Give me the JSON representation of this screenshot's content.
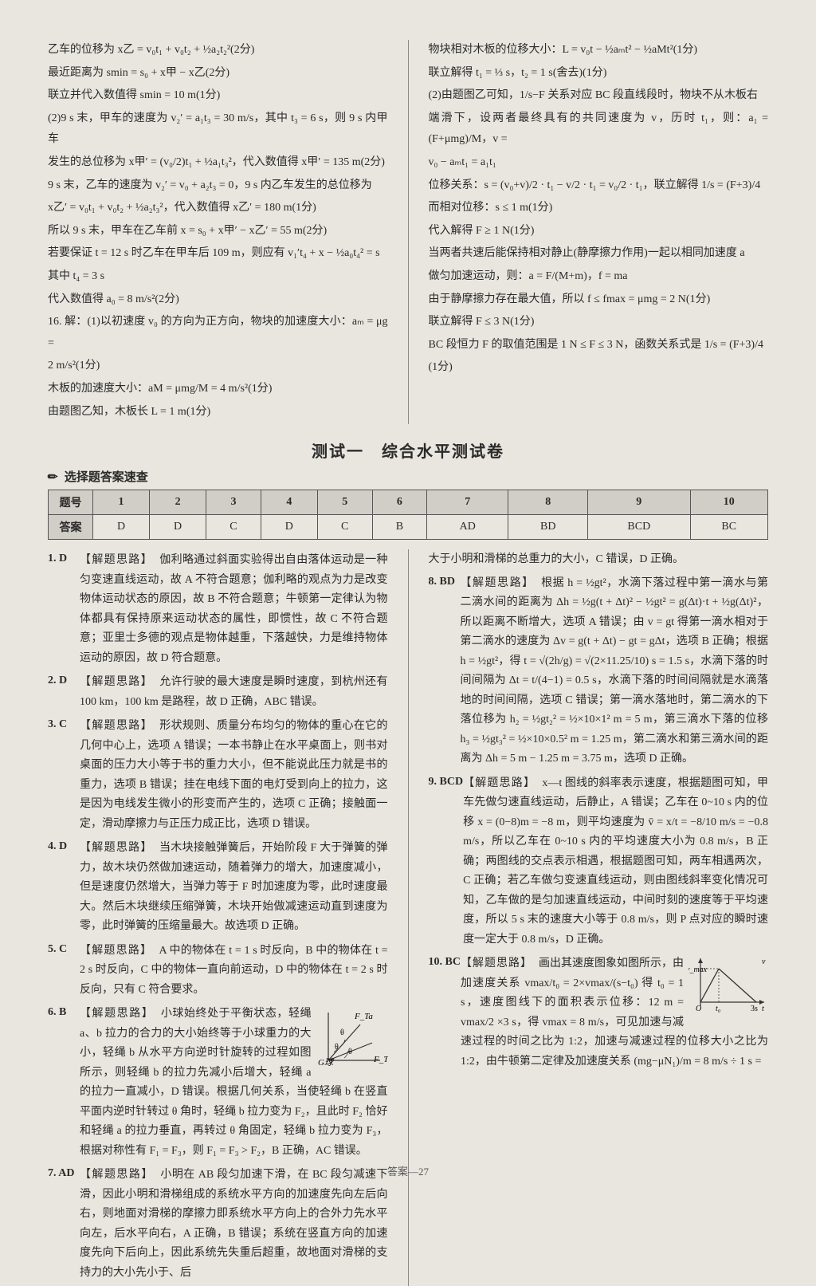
{
  "top": {
    "left_lines": [
      "乙车的位移为 x乙 = v₀t₁ + v₀t₂ + ½a₂t₂²(2分)",
      "最近距离为 smin = s₀ + x甲 − x乙(2分)",
      "联立并代入数值得 smin = 10 m(1分)",
      "(2)9 s 末，甲车的速度为 v₂′ = a₁t₃ = 30 m/s，其中 t₃ = 6 s，则 9 s 内甲车",
      "发生的总位移为 x甲′ = (v₀/2)t₁ + ½a₁t₃²，代入数值得 x甲′ = 135 m(2分)",
      "9 s 末，乙车的速度为 v₂′ = v₀ + a₂t₃ = 0，9 s 内乙车发生的总位移为",
      "x乙′ = v₀t₁ + v₀t₂ + ½a₂t₃²，代入数值得 x乙′ = 180 m(1分)",
      "所以 9 s 末，甲车在乙车前 x = s₀ + x甲′ − x乙′ = 55 m(2分)",
      "若要保证 t = 12 s 时乙车在甲车后 109 m，则应有 v₁′t₄ + x − ½a₀t₄² = s",
      "其中 t₄ = 3 s",
      "代入数值得 a₀ = 8 m/s²(2分)",
      "16. 解：(1)以初速度 v₀ 的方向为正方向，物块的加速度大小：aₘ = μg = ",
      "2 m/s²(1分)",
      "木板的加速度大小：aM = μmg/M = 4 m/s²(1分)",
      "由题图乙知，木板长 L = 1 m(1分)"
    ],
    "right_lines": [
      "物块相对木板的位移大小：L = v₀t − ½aₘt² − ½aMt²(1分)",
      "联立解得 t₁ = ⅓ s，t₂ = 1 s(舍去)(1分)",
      "(2)由题图乙可知，1/s−F 关系对应 BC 段直线段时，物块不从木板右",
      "端滑下，设两者最终具有的共同速度为 v，历时 t₁，则：a₁ = (F+μmg)/M，v =",
      "v₀ − aₘt₁ = a₁t₁",
      "位移关系：s = (v₀+v)/2 · t₁ − v/2 · t₁ = v₀/2 · t₁，联立解得 1/s = (F+3)/4",
      "而相对位移：s ≤ 1 m(1分)",
      "代入解得 F ≥ 1 N(1分)",
      "当两者共速后能保持相对静止(静摩擦力作用)一起以相同加速度 a",
      "做匀加速运动，则：a = F/(M+m)，f = ma",
      "由于静摩擦力存在最大值，所以 f ≤ fmax = μmg = 2 N(1分)",
      "联立解得 F ≤ 3 N(1分)",
      "BC 段恒力 F 的取值范围是 1 N ≤ F ≤ 3 N，函数关系式是 1/s = (F+3)/4",
      "(1分)"
    ]
  },
  "test_title": "测试一　综合水平测试卷",
  "quick_check_label": "选择题答案速查",
  "answer_table": {
    "header_label": "题号",
    "row_label": "答案",
    "cols": [
      "1",
      "2",
      "3",
      "4",
      "5",
      "6",
      "7",
      "8",
      "9",
      "10"
    ],
    "answers": [
      "D",
      "D",
      "C",
      "D",
      "C",
      "B",
      "AD",
      "BD",
      "BCD",
      "BC"
    ]
  },
  "solutions_left": [
    {
      "num": "1. D",
      "tag": "【解题思路】",
      "text": "伽利略通过斜面实验得出自由落体运动是一种匀变速直线运动，故 A 不符合题意；伽利略的观点为力是改变物体运动状态的原因，故 B 不符合题意；牛顿第一定律认为物体都具有保持原来运动状态的属性，即惯性，故 C 不符合题意；亚里士多德的观点是物体越重，下落越快，力是维持物体运动的原因，故 D 符合题意。"
    },
    {
      "num": "2. D",
      "tag": "【解题思路】",
      "text": "允许行驶的最大速度是瞬时速度，到杭州还有 100 km，100 km 是路程，故 D 正确，ABC 错误。"
    },
    {
      "num": "3. C",
      "tag": "【解题思路】",
      "text": "形状规则、质量分布均匀的物体的重心在它的几何中心上，选项 A 错误；一本书静止在水平桌面上，则书对桌面的压力大小等于书的重力大小，但不能说此压力就是书的重力，选项 B 错误；挂在电线下面的电灯受到向上的拉力，这是因为电线发生微小的形变而产生的，选项 C 正确；接触面一定，滑动摩擦力与正压力成正比，选项 D 错误。"
    },
    {
      "num": "4. D",
      "tag": "【解题思路】",
      "text": "当木块接触弹簧后，开始阶段 F 大于弹簧的弹力，故木块仍然做加速运动，随着弹力的增大，加速度减小，但是速度仍然增大，当弹力等于 F 时加速度为零，此时速度最大。然后木块继续压缩弹簧，木块开始做减速运动直到速度为零，此时弹簧的压缩量最大。故选项 D 正确。"
    },
    {
      "num": "5. C",
      "tag": "【解题思路】",
      "text": "A 中的物体在 t = 1 s 时反向，B 中的物体在 t = 2 s 时反向，C 中的物体一直向前运动，D 中的物体在 t = 2 s 时反向，只有 C 符合要求。"
    },
    {
      "num": "6. B",
      "tag": "【解题思路】",
      "text": "小球始终处于平衡状态，轻绳 a、b 拉力的合力的大小始终等于小球重力的大小，轻绳 b 从水平方向逆时针旋转的过程如图所示，则轻绳 b 的拉力先减小后增大，轻绳 a 的拉力一直减小，D 错误。根据几何关系，当使轻绳 b 在竖直平面内逆时针转过 θ 角时，轻绳 b 拉力变为 F₂，且此时 F₂ 恰好和轻绳 a 的拉力垂直，再转过 θ 角固定，轻绳 b 拉力变为 F₃，根据对称性有 F₁ = F₃，则 F₁ = F₃ > F₂，B 正确，AC 错误。",
      "has_diagram": true
    },
    {
      "num": "7. AD",
      "tag": "【解题思路】",
      "text": "小明在 AB 段匀加速下滑，在 BC 段匀减速下滑，因此小明和滑梯组成的系统水平方向的加速度先向左后向右，则地面对滑梯的摩擦力即系统水平方向上的合外力先水平向左，后水平向右，A 正确，B 错误；系统在竖直方向的加速度先向下后向上，因此系统先失重后超重，故地面对滑梯的支持力的大小先小于、后"
    }
  ],
  "solutions_right": [
    {
      "pre": "大于小明和滑梯的总重力的大小，C 错误，D 正确。"
    },
    {
      "num": "8. BD",
      "tag": "【解题思路】",
      "text": "根据 h = ½gt²，水滴下落过程中第一滴水与第二滴水间的距离为 Δh = ½g(t + Δt)² − ½gt² = g(Δt)·t + ½g(Δt)²，所以距离不断增大，选项 A 错误；由 v = gt 得第一滴水相对于第二滴水的速度为 Δv = g(t + Δt) − gt = gΔt，选项 B 正确；根据 h = ½gt²，得 t = √(2h/g) = √(2×11.25/10) s = 1.5 s，水滴下落的时间间隔为 Δt = t/(4−1) = 0.5 s，水滴下落的时间间隔就是水滴落地的时间间隔，选项 C 错误；第一滴水落地时，第二滴水的下落位移为 h₂ = ½gt₂² = ½×10×1² m = 5 m，第三滴水下落的位移 h₃ = ½gt₃² = ½×10×0.5² m = 1.25 m，第二滴水和第三滴水间的距离为 Δh = 5 m − 1.25 m = 3.75 m，选项 D 正确。"
    },
    {
      "num": "9. BCD",
      "tag": "【解题思路】",
      "text": "x—t 图线的斜率表示速度，根据题图可知，甲车先做匀速直线运动，后静止，A 错误；乙车在 0~10 s 内的位移 x = (0−8)m = −8 m，则平均速度为 v̄ = x/t = −8/10 m/s = −0.8 m/s，所以乙车在 0~10 s 内的平均速度大小为 0.8 m/s，B 正确；两图线的交点表示相遇，根据题图可知，两车相遇两次，C 正确；若乙车做匀变速直线运动，则由图线斜率变化情况可知，乙车做的是匀加速直线运动，中间时刻的速度等于平均速度，所以 5 s 末的速度大小等于 0.8 m/s，则 P 点对应的瞬时速度一定大于 0.8 m/s，D 正确。"
    },
    {
      "num": "10. BC",
      "tag": "【解题思路】",
      "text": "画出其速度图象如图所示，由加速度关系 vmax/t₀ = 2×vmax/(s−t₀) 得 t₀ = 1 s，速度图线下的面积表示位移：12 m = vmax/2 ×3 s，得 vmax = 8 m/s，可见加速与减速过程的时间之比为 1:2，加速与减速过程的位移大小之比为 1:2，由牛顿第二定律及加速度关系 (mg−μN₁)/m = 8 m/s ÷ 1 s =",
      "has_diagram": true
    }
  ],
  "footer": "答案—27"
}
